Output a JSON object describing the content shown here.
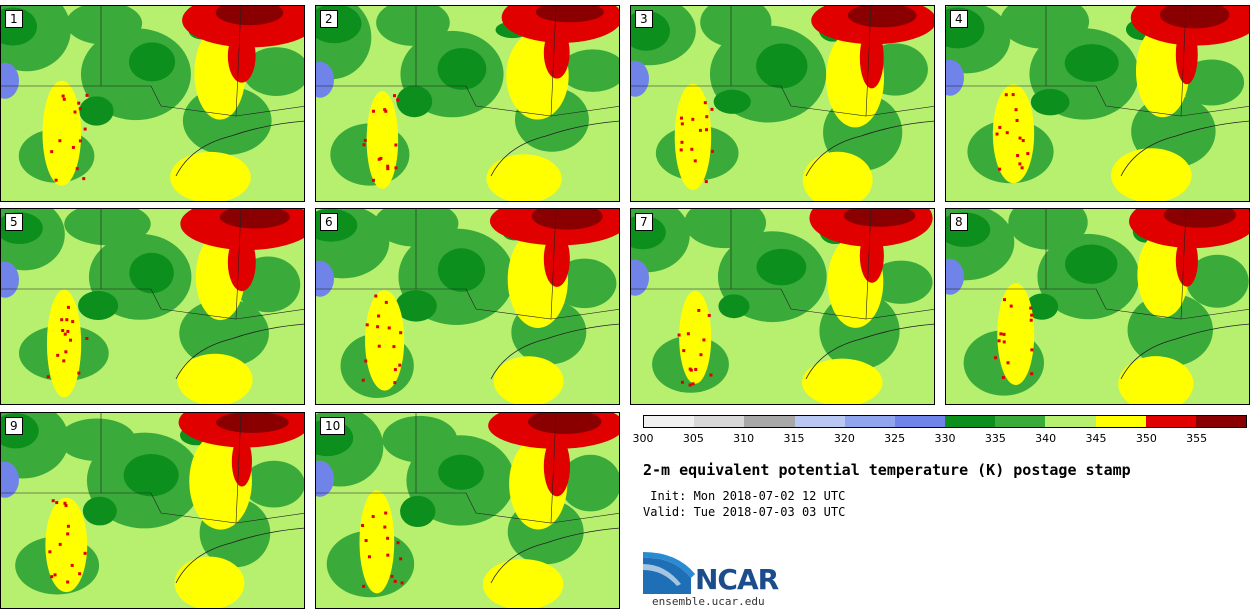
{
  "title": "2-m equivalent potential temperature (K) postage stamp",
  "init": " Init: Mon 2018-07-02 12 UTC",
  "valid": "Valid: Tue 2018-07-03 03 UTC",
  "panels": [
    {
      "label": "1"
    },
    {
      "label": "2"
    },
    {
      "label": "3"
    },
    {
      "label": "4"
    },
    {
      "label": "5"
    },
    {
      "label": "6"
    },
    {
      "label": "7"
    },
    {
      "label": "8"
    },
    {
      "label": "9"
    },
    {
      "label": "10"
    }
  ],
  "colorbar": {
    "colors": [
      "#f0f0f0",
      "#d8d8d8",
      "#a8a8a8",
      "#b9c8f2",
      "#8fa6ee",
      "#6f83e8",
      "#0c8f1c",
      "#3aab3a",
      "#b7f06f",
      "#ffff00",
      "#e00000",
      "#8a0000"
    ],
    "ticks": [
      "300",
      "305",
      "310",
      "315",
      "320",
      "325",
      "330",
      "335",
      "340",
      "345",
      "350",
      "355"
    ]
  },
  "logo": {
    "text": "NCAR",
    "site": "ensemble.ucar.edu"
  }
}
